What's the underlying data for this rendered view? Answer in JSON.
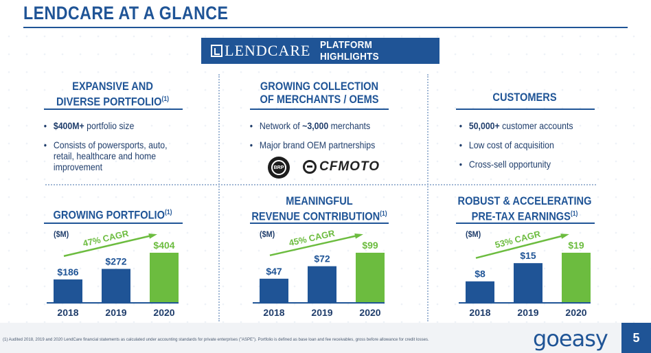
{
  "title": "LENDCARE AT A GLANCE",
  "banner": {
    "brand": "LENDCARE",
    "subtitle": "PLATFORM HIGHLIGHTS"
  },
  "panels": {
    "portfolio": {
      "title_line1": "EXPANSIVE AND",
      "title_line2": "DIVERSE PORTFOLIO",
      "title_sup": "(1)",
      "bullets": [
        {
          "bold": "$400M+",
          "text": " portfolio size"
        },
        {
          "bold": "",
          "text": "Consists of powersports, auto, retail, healthcare and home improvement"
        }
      ]
    },
    "merchants": {
      "title_line1": "GROWING COLLECTION",
      "title_line2": "OF MERCHANTS / OEMS",
      "bullets": [
        {
          "pre": "Network of ",
          "bold": "~3,000",
          "text": " merchants"
        },
        {
          "pre": "",
          "bold": "",
          "text": "Major brand OEM partnerships"
        }
      ],
      "logos": {
        "brp": "BRP",
        "cfmoto": "CFMOTO"
      }
    },
    "customers": {
      "title": "CUSTOMERS",
      "bullets": [
        {
          "bold": "50,000+",
          "text": " customer accounts"
        },
        {
          "bold": "",
          "text": "Low cost of acquisition"
        },
        {
          "bold": "",
          "text": "Cross-sell opportunity"
        }
      ]
    }
  },
  "chart_data": [
    {
      "type": "bar",
      "title": "GROWING PORTFOLIO",
      "title_sup": "(1)",
      "ylabel": "($M)",
      "categories": [
        "2018",
        "2019",
        "2020"
      ],
      "values": [
        186,
        272,
        404
      ],
      "value_labels": [
        "$186",
        "$272",
        "$404"
      ],
      "annotation": "47% CAGR",
      "colors": [
        "#1f5496",
        "#1f5496",
        "#6cbc3f"
      ]
    },
    {
      "type": "bar",
      "title_line1": "MEANINGFUL",
      "title_line2": "REVENUE CONTRIBUTION",
      "title_sup": "(1)",
      "ylabel": "($M)",
      "categories": [
        "2018",
        "2019",
        "2020"
      ],
      "values": [
        47,
        72,
        99
      ],
      "value_labels": [
        "$47",
        "$72",
        "$99"
      ],
      "annotation": "45% CAGR",
      "colors": [
        "#1f5496",
        "#1f5496",
        "#6cbc3f"
      ]
    },
    {
      "type": "bar",
      "title_line1": "ROBUST & ACCELERATING",
      "title_line2": "PRE-TAX EARNINGS",
      "title_sup": "(1)",
      "ylabel": "($M)",
      "categories": [
        "2018",
        "2019",
        "2020"
      ],
      "values": [
        8,
        15,
        19
      ],
      "value_labels": [
        "$8",
        "$15",
        "$19"
      ],
      "annotation": "53% CAGR",
      "colors": [
        "#1f5496",
        "#1f5496",
        "#6cbc3f"
      ]
    }
  ],
  "footer": {
    "footnote": "(1) Audited 2018, 2019 and 2020 LendCare financial statements as calculated under accounting standards for private enterprises (\"ASPE\"). Portfolio is defined as base loan and fee receivables, gross before allowance for credit losses.",
    "brand": "goeasy",
    "page": "5"
  }
}
